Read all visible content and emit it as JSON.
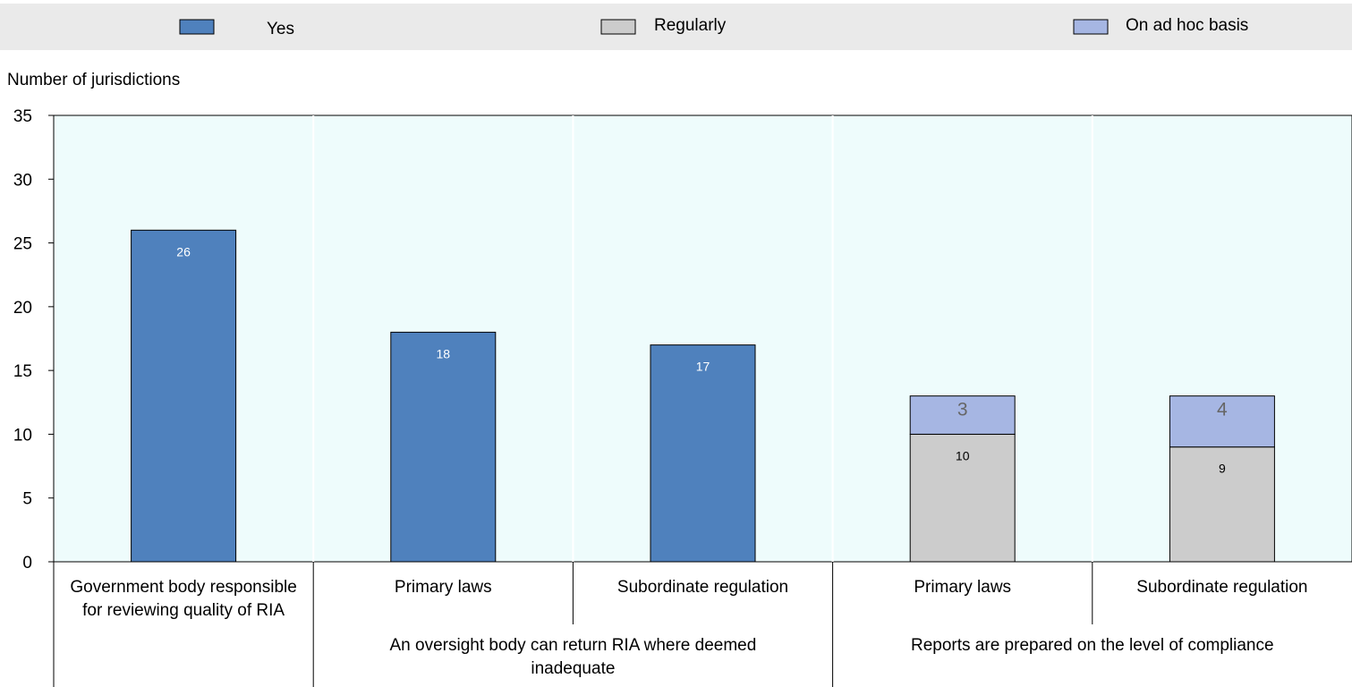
{
  "chart_data": {
    "type": "bar",
    "stacked": true,
    "ylabel": "Number of jurisdictions",
    "ylim": [
      0,
      35
    ],
    "yticks": [
      0,
      5,
      10,
      15,
      20,
      25,
      30,
      35
    ],
    "grid": false,
    "legend": {
      "placement": "top",
      "entries": [
        {
          "name": "Yes",
          "color": "#4f81bd"
        },
        {
          "name": "Regularly",
          "color": "#cccccc"
        },
        {
          "name": "On ad hoc basis",
          "color": "#a6b6e3"
        }
      ]
    },
    "categories": [
      "Government body responsible for reviewing quality of RIA",
      "Primary laws",
      "Subordinate regulation",
      "Primary laws",
      "Subordinate regulation"
    ],
    "category_lines": [
      [
        "Government body responsible",
        "for reviewing quality of RIA"
      ],
      [
        "Primary laws"
      ],
      [
        "Subordinate regulation"
      ],
      [
        "Primary laws"
      ],
      [
        "Subordinate regulation"
      ]
    ],
    "groups": [
      {
        "lines": [
          "An oversight body can return RIA where deemed",
          "inadequate"
        ],
        "categories": [
          1,
          2
        ]
      },
      {
        "lines": [
          "Reports are prepared on the level of compliance"
        ],
        "categories": [
          3,
          4
        ]
      }
    ],
    "series": [
      {
        "name": "Yes",
        "color": "#4f81bd",
        "label_color": "#ffffff",
        "values": [
          26,
          18,
          17,
          null,
          null
        ]
      },
      {
        "name": "Regularly",
        "color": "#cccccc",
        "label_color": "#000000",
        "values": [
          null,
          null,
          null,
          10,
          9
        ]
      },
      {
        "name": "On ad hoc basis",
        "color": "#a6b6e3",
        "label_color": "#666666",
        "values": [
          null,
          null,
          null,
          3,
          4
        ]
      }
    ],
    "plot_background": "#eefcfc",
    "legend_background": "#eaeaea"
  }
}
